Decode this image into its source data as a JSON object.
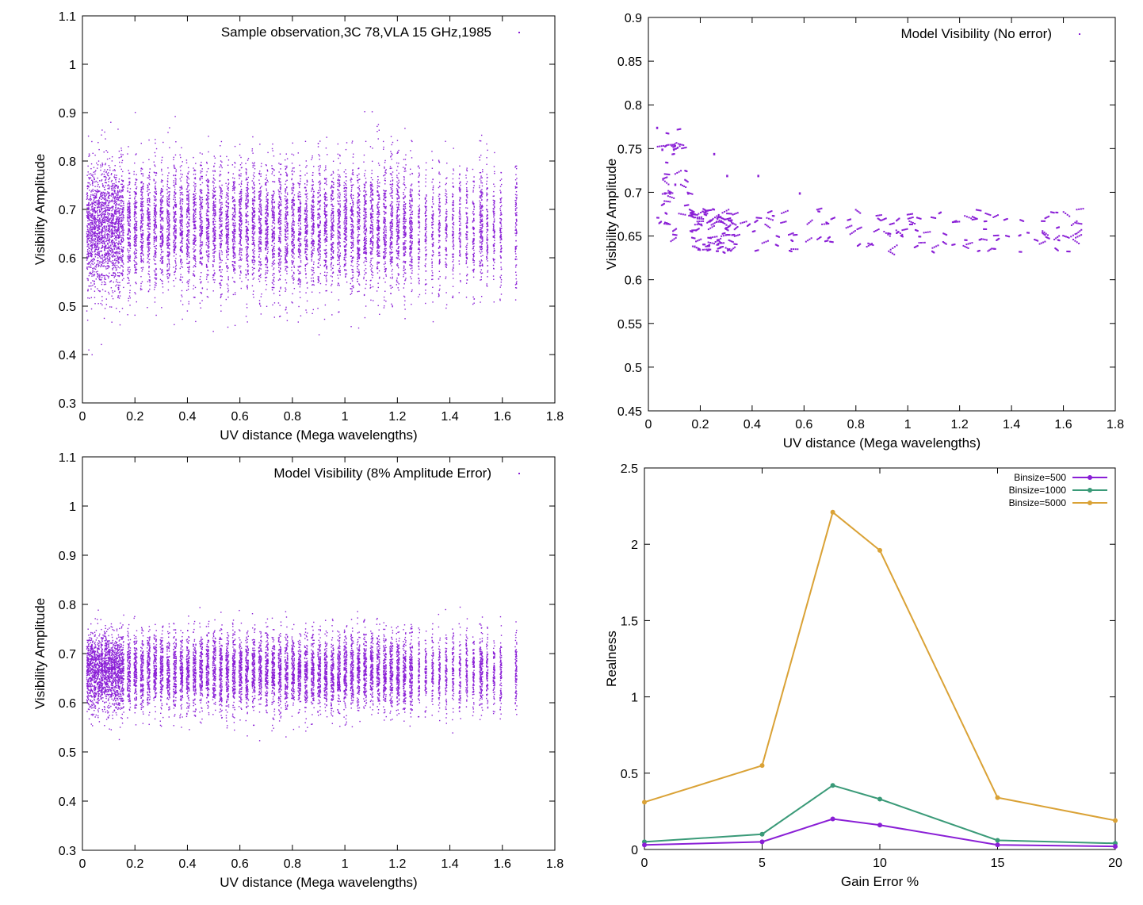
{
  "chart_data": [
    {
      "type": "scatter",
      "title": "",
      "legend": "Sample observation,3C 78,VLA 15 GHz,1985",
      "xlabel": "UV distance (Mega wavelengths)",
      "ylabel": "Visibility Amplitude",
      "xlim": [
        0,
        1.8
      ],
      "ylim": [
        0.3,
        1.1
      ],
      "xticks": [
        "0",
        "0.2",
        "0.4",
        "0.6",
        "0.8",
        "1",
        "1.2",
        "1.4",
        "1.6",
        "1.8"
      ],
      "yticks": [
        "0.3",
        "0.4",
        "0.5",
        "0.6",
        "0.7",
        "0.8",
        "0.9",
        "1",
        "1.1"
      ],
      "color": "#8a1fd6",
      "description_params": {
        "center": 0.665,
        "spread": 0.14
      }
    },
    {
      "type": "scatter",
      "title": "",
      "legend": "Model Visibility (No error)",
      "xlabel": "UV distance (Mega wavelengths)",
      "ylabel": "Visibility Amplitude",
      "xlim": [
        0,
        1.8
      ],
      "ylim": [
        0.45,
        0.9
      ],
      "xticks": [
        "0",
        "0.2",
        "0.4",
        "0.6",
        "0.8",
        "1",
        "1.2",
        "1.4",
        "1.6",
        "1.8"
      ],
      "yticks": [
        "0.45",
        "0.5",
        "0.55",
        "0.6",
        "0.65",
        "0.7",
        "0.75",
        "0.8",
        "0.85",
        "0.9"
      ],
      "color": "#8a1fd6",
      "description_params": {
        "center": 0.655,
        "spread": 0.02
      }
    },
    {
      "type": "scatter",
      "title": "",
      "legend": "Model Visibility (8% Amplitude Error)",
      "xlabel": "UV distance (Mega wavelengths)",
      "ylabel": "Visibility Amplitude",
      "xlim": [
        0,
        1.8
      ],
      "ylim": [
        0.3,
        1.1
      ],
      "xticks": [
        "0",
        "0.2",
        "0.4",
        "0.6",
        "0.8",
        "1",
        "1.2",
        "1.4",
        "1.6",
        "1.8"
      ],
      "yticks": [
        "0.3",
        "0.4",
        "0.5",
        "0.6",
        "0.7",
        "0.8",
        "0.9",
        "1",
        "1.1"
      ],
      "color": "#8a1fd6",
      "description_params": {
        "center": 0.665,
        "spread": 0.1
      }
    },
    {
      "type": "line",
      "title": "",
      "xlabel": "Gain Error %",
      "ylabel": "Realness",
      "xlim": [
        0,
        20
      ],
      "ylim": [
        0,
        2.5
      ],
      "xticks": [
        "0",
        "5",
        "10",
        "15",
        "20"
      ],
      "yticks": [
        "0",
        "0.5",
        "1",
        "1.5",
        "2",
        "2.5"
      ],
      "legend_position": "top-right",
      "x": [
        0,
        5,
        8,
        10,
        15,
        20
      ],
      "series": [
        {
          "name": "Binsize=500",
          "color": "#8a1fd6",
          "values": [
            0.03,
            0.05,
            0.2,
            0.16,
            0.03,
            0.02
          ]
        },
        {
          "name": "Binsize=1000",
          "color": "#3a9a78",
          "values": [
            0.05,
            0.1,
            0.42,
            0.33,
            0.06,
            0.04
          ]
        },
        {
          "name": "Binsize=5000",
          "color": "#daa236",
          "values": [
            0.31,
            0.55,
            2.21,
            1.96,
            0.34,
            0.19
          ]
        }
      ]
    }
  ]
}
